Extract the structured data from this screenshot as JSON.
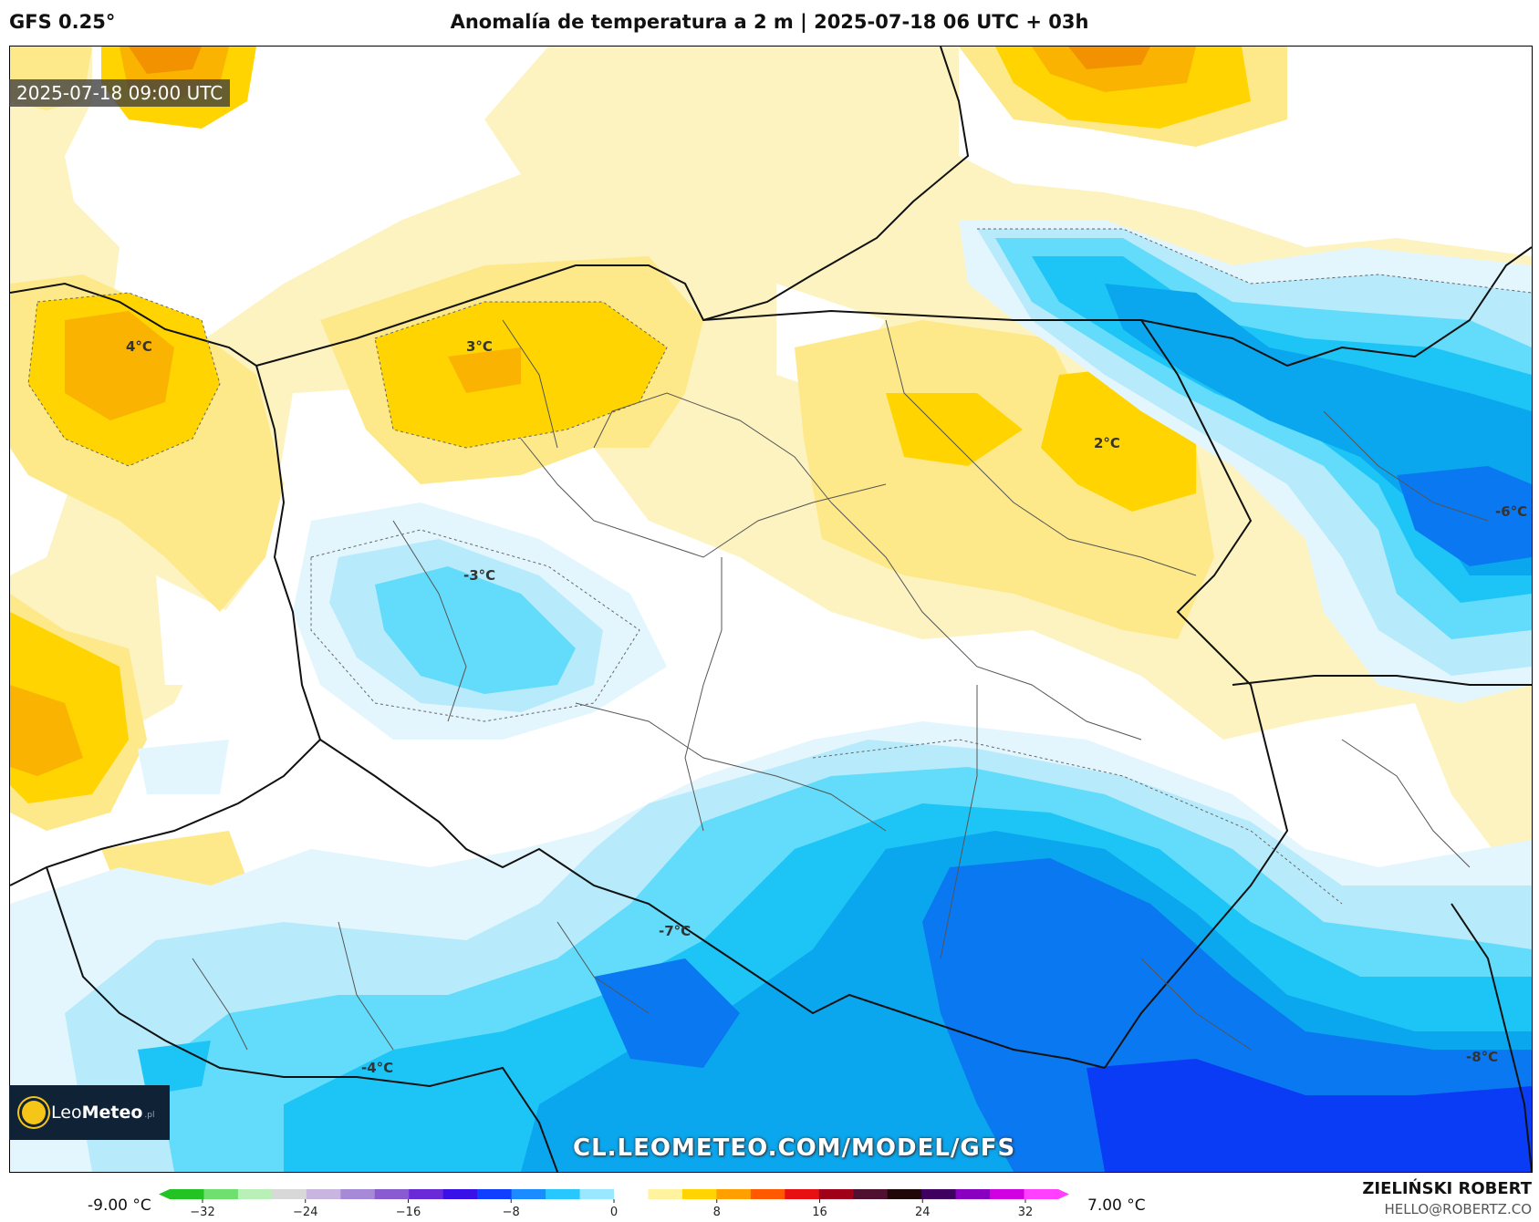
{
  "header": {
    "model": "GFS 0.25°",
    "title": "Anomalía de temperatura a 2 m | 2025-07-18 06 UTC + 03h"
  },
  "map": {
    "valid_time": "2025-07-18 09:00 UTC",
    "watermark": "CL.LEOMETEO.COM/MODEL/GFS",
    "labels": [
      {
        "id": "l1",
        "text": "4°C"
      },
      {
        "id": "l2",
        "text": "3°C"
      },
      {
        "id": "l3",
        "text": "2°C"
      },
      {
        "id": "l4",
        "text": "-3°C"
      },
      {
        "id": "l5",
        "text": "-6°C"
      },
      {
        "id": "l6",
        "text": "-7°C"
      },
      {
        "id": "l7",
        "text": "-4°C"
      },
      {
        "id": "l8",
        "text": "-8°C"
      }
    ],
    "colors": {
      "warm_light": "#fdf3c0",
      "warm_mid": "#fde98a",
      "warm": "#ffd400",
      "warm_strong": "#f9b300",
      "hot": "#f39200",
      "neutral": "#ffffff",
      "cool_pale": "#e4f6fd",
      "cool_light": "#b7ebfb",
      "cool": "#62dcfa",
      "cold": "#1cc5f5",
      "colder": "#0aa7ee",
      "very_cold": "#0a78f0",
      "extreme_cold": "#0a3cf5"
    }
  },
  "logo": {
    "brand_a": "Leo",
    "brand_b": "Meteo",
    "brand_c": ".pl"
  },
  "colorbar": {
    "min_label": "-9.00 °C",
    "max_label": "7.00 °C",
    "ticks": [
      "−32",
      "−24",
      "−16",
      "−8",
      "0",
      "8",
      "16",
      "24",
      "32"
    ],
    "stops": [
      "#22c322",
      "#6fe06f",
      "#b8f0b8",
      "#d8d8d8",
      "#c8b6e0",
      "#a68ad8",
      "#8a5ad0",
      "#6a2ad8",
      "#3a10e8",
      "#1040ff",
      "#1a8cff",
      "#28c8ff",
      "#9ae8ff",
      "#ffffff",
      "#fff3a0",
      "#ffd400",
      "#ffa000",
      "#ff5a00",
      "#e81010",
      "#a00018",
      "#501030",
      "#200808",
      "#400060",
      "#8a00c0",
      "#d000e0",
      "#ff40ff"
    ]
  },
  "credit": {
    "name": "ZIELIŃSKI ROBERT",
    "email": "HELLO@ROBERTZ.CO"
  }
}
